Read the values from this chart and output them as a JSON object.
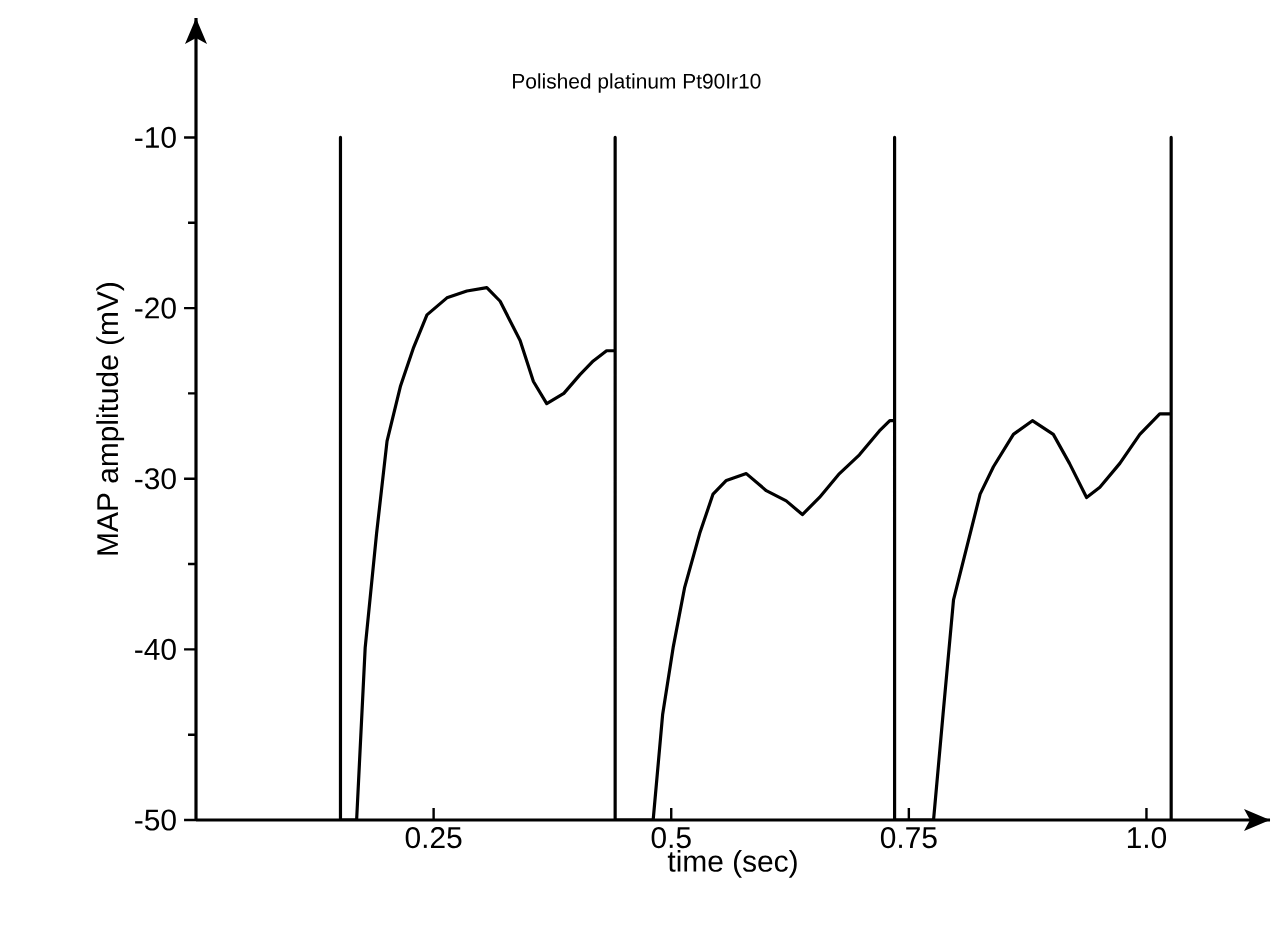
{
  "chart_data": {
    "type": "line",
    "title": "Polished platinum Pt90Ir10",
    "xlabel": "time (sec)",
    "ylabel": "MAP amplitude (mV)",
    "xlim": [
      0,
      1.13
    ],
    "ylim": [
      -50,
      -3
    ],
    "xticks": [
      0.25,
      0.5,
      0.75,
      {
        "value": 1.0,
        "label": "1.0"
      }
    ],
    "yticks": [
      -50,
      -40,
      -30,
      -20,
      -10
    ],
    "series": [
      {
        "color": "#000000",
        "x": [
          0.152,
          0.152,
          0.152,
          0.169,
          0.178,
          0.19,
          0.201,
          0.215,
          0.229,
          0.243,
          0.264,
          0.285,
          0.306,
          0.32,
          0.341,
          0.355,
          0.369,
          0.387,
          0.404,
          0.418,
          0.432,
          0.441,
          0.441,
          0.441,
          0.481,
          0.491,
          0.502,
          0.514,
          0.53,
          0.544,
          0.558,
          0.579,
          0.6,
          0.621,
          0.638,
          0.656,
          0.677,
          0.698,
          0.719,
          0.73,
          0.735,
          0.735,
          0.735,
          0.776,
          0.786,
          0.797,
          0.811,
          0.825,
          0.839,
          0.86,
          0.88,
          0.902,
          0.919,
          0.937,
          0.951,
          0.972,
          0.993,
          1.014,
          1.026,
          1.026,
          1.026
        ],
        "values": [
          -50,
          -10,
          -50,
          -50,
          -39.9,
          -33.2,
          -27.8,
          -24.6,
          -22.3,
          -20.4,
          -19.4,
          -19.0,
          -18.8,
          -19.6,
          -21.9,
          -24.3,
          -25.6,
          -25.0,
          -23.9,
          -23.1,
          -22.5,
          -22.5,
          -10,
          -50,
          -50,
          -43.8,
          -39.9,
          -36.4,
          -33.2,
          -30.9,
          -30.1,
          -29.7,
          -30.7,
          -31.3,
          -32.1,
          -31.1,
          -29.7,
          -28.6,
          -27.2,
          -26.6,
          -26.6,
          -10,
          -50,
          -50,
          -43.8,
          -37.1,
          -34.0,
          -30.9,
          -29.3,
          -27.4,
          -26.6,
          -27.4,
          -29.1,
          -31.1,
          -30.5,
          -29.1,
          -27.4,
          -26.2,
          -26.2,
          -10,
          -50
        ]
      }
    ]
  }
}
